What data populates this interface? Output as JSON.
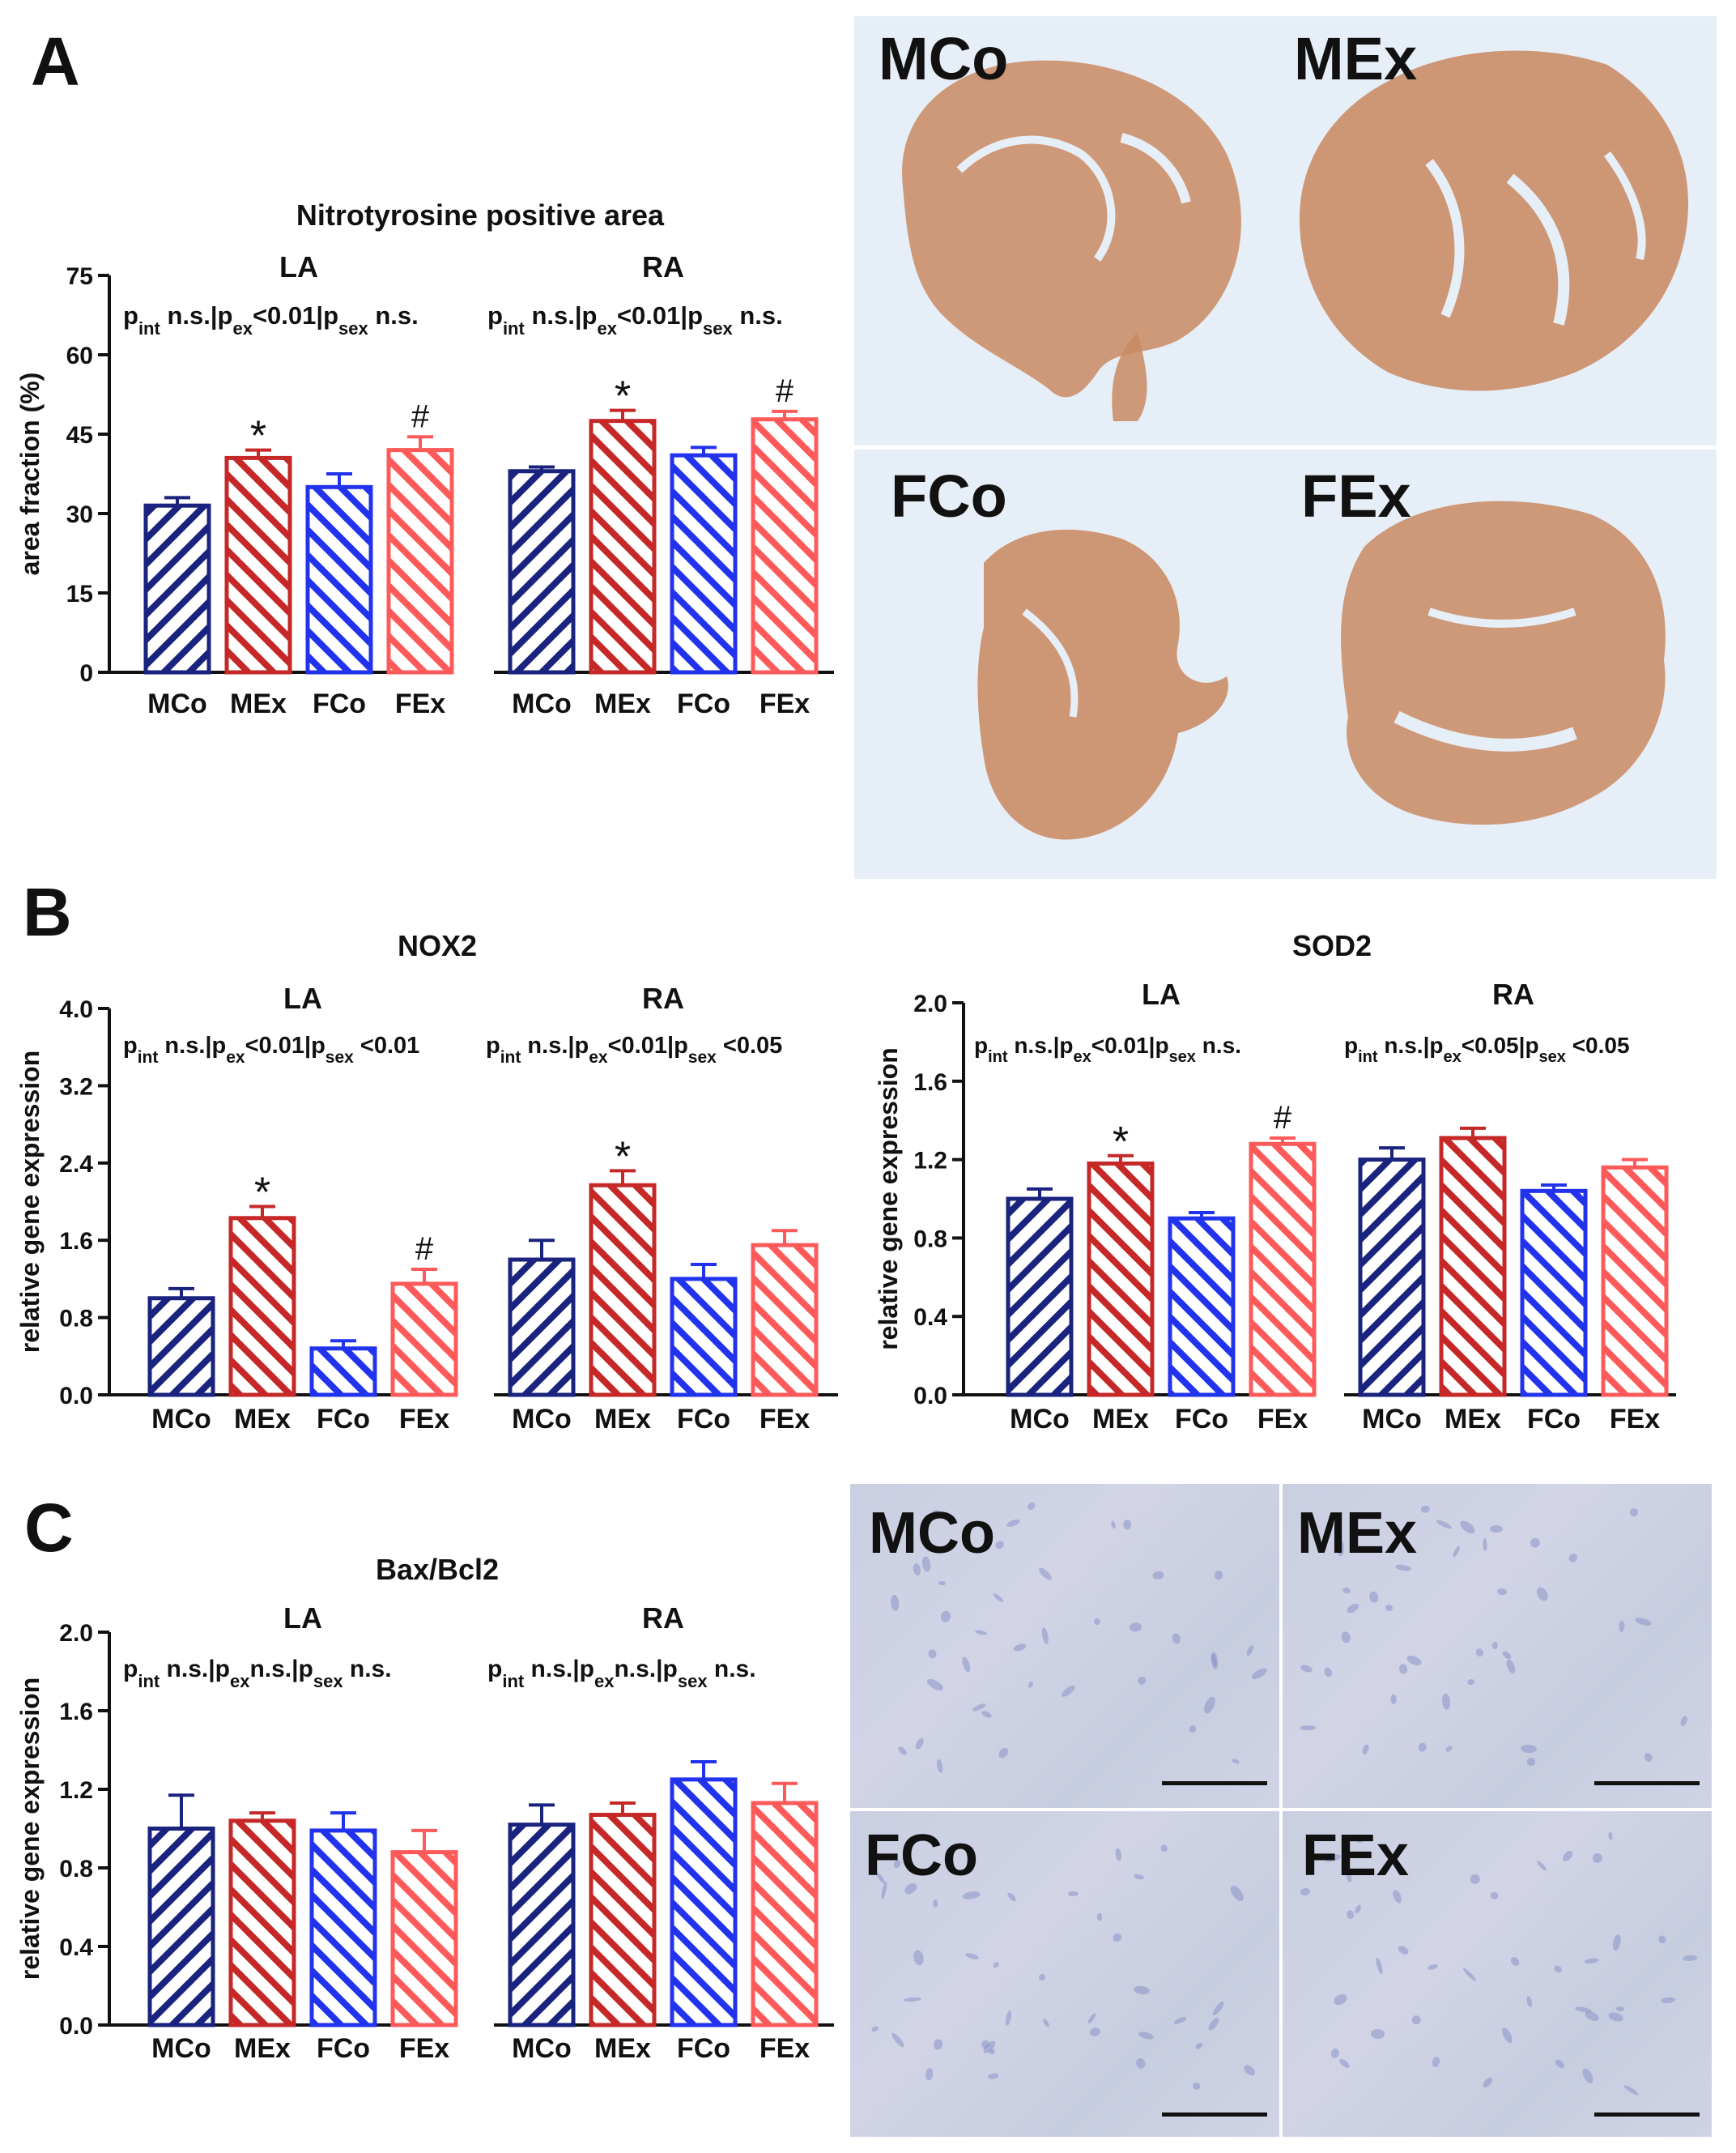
{
  "panels": [
    {
      "letter": "A"
    },
    {
      "letter": "B"
    },
    {
      "letter": "C"
    }
  ],
  "chart_data": [
    {
      "type": "bar",
      "title": "Nitrotyrosine positive area",
      "ylabel": "area fraction (%)",
      "ylim": [
        0,
        75
      ],
      "yticks": [
        "0",
        "15",
        "30",
        "45",
        "60",
        "75"
      ],
      "categories": [
        "MCo",
        "MEx",
        "FCo",
        "FEx"
      ],
      "groups": [
        {
          "name": "LA",
          "stats_text": {
            "int": "n.s.",
            "ex": "<0.01",
            "sex": "n.s."
          },
          "values": [
            31.5,
            40.5,
            35,
            42
          ],
          "errors": [
            1.5,
            1.5,
            2.5,
            2.5
          ],
          "annotations": [
            "",
            "*",
            "",
            "#"
          ]
        },
        {
          "name": "RA",
          "stats_text": {
            "int": "n.s.",
            "ex": "<0.01",
            "sex": "n.s."
          },
          "values": [
            38,
            47.5,
            41,
            47.8
          ],
          "errors": [
            0.8,
            2.0,
            1.5,
            1.5
          ],
          "annotations": [
            "",
            "*",
            "",
            "#"
          ]
        }
      ]
    },
    {
      "type": "bar",
      "title": "NOX2",
      "ylabel": "relative gene expression",
      "ylim": [
        0,
        4
      ],
      "yticks": [
        "0.0",
        "0.8",
        "1.6",
        "2.4",
        "3.2",
        "4.0"
      ],
      "categories": [
        "MCo",
        "MEx",
        "FCo",
        "FEx"
      ],
      "groups": [
        {
          "name": "LA",
          "stats_text": {
            "int": "n.s.",
            "ex": "<0.01",
            "sex": "<0.01"
          },
          "values": [
            1.0,
            1.83,
            0.48,
            1.15
          ],
          "errors": [
            0.1,
            0.12,
            0.08,
            0.15
          ],
          "annotations": [
            "",
            "*",
            "",
            "#"
          ]
        },
        {
          "name": "RA",
          "stats_text": {
            "int": "n.s.",
            "ex": "<0.01",
            "sex": "<0.05"
          },
          "values": [
            1.4,
            2.17,
            1.2,
            1.55
          ],
          "errors": [
            0.2,
            0.15,
            0.15,
            0.15
          ],
          "annotations": [
            "",
            "*",
            "",
            ""
          ]
        }
      ]
    },
    {
      "type": "bar",
      "title": "SOD2",
      "ylabel": "relative gene expression",
      "ylim": [
        0,
        2
      ],
      "yticks": [
        "0.0",
        "0.4",
        "0.8",
        "1.2",
        "1.6",
        "2.0"
      ],
      "categories": [
        "MCo",
        "MEx",
        "FCo",
        "FEx"
      ],
      "groups": [
        {
          "name": "LA",
          "stats_text": {
            "int": "n.s.",
            "ex": "<0.01",
            "sex": "n.s."
          },
          "values": [
            1.0,
            1.18,
            0.9,
            1.28
          ],
          "errors": [
            0.05,
            0.04,
            0.03,
            0.03
          ],
          "annotations": [
            "",
            "*",
            "",
            "#"
          ]
        },
        {
          "name": "RA",
          "stats_text": {
            "int": "n.s.",
            "ex": "<0.05",
            "sex": "<0.05"
          },
          "values": [
            1.2,
            1.31,
            1.04,
            1.16
          ],
          "errors": [
            0.06,
            0.05,
            0.03,
            0.04
          ],
          "annotations": [
            "",
            "",
            "",
            ""
          ]
        }
      ]
    },
    {
      "type": "bar",
      "title": "Bax/Bcl2",
      "ylabel": "relative gene expression",
      "ylim": [
        0,
        2
      ],
      "yticks": [
        "0.0",
        "0.4",
        "0.8",
        "1.2",
        "1.6",
        "2.0"
      ],
      "categories": [
        "MCo",
        "MEx",
        "FCo",
        "FEx"
      ],
      "groups": [
        {
          "name": "LA",
          "stats_text": {
            "int": "n.s.",
            "ex": "n.s.",
            "sex": "n.s."
          },
          "values": [
            1.0,
            1.04,
            0.99,
            0.88
          ],
          "errors": [
            0.17,
            0.04,
            0.09,
            0.11
          ],
          "annotations": [
            "",
            "",
            "",
            ""
          ]
        },
        {
          "name": "RA",
          "stats_text": {
            "int": "n.s.",
            "ex": "n.s.",
            "sex": "n.s."
          },
          "values": [
            1.02,
            1.07,
            1.25,
            1.13
          ],
          "errors": [
            0.1,
            0.06,
            0.09,
            0.1
          ],
          "annotations": [
            "",
            "",
            "",
            ""
          ]
        }
      ]
    }
  ],
  "colors": {
    "MCo": "#1a237e",
    "MEx": "#c62828",
    "FCo": "#2233ee",
    "FEx": "#ff5a5a",
    "tissue": "#c98a62"
  },
  "images": {
    "heart_sections": [
      "MCo",
      "MEx",
      "FCo",
      "FEx"
    ],
    "micrographs": [
      "MCo",
      "MEx",
      "FCo",
      "FEx"
    ]
  }
}
